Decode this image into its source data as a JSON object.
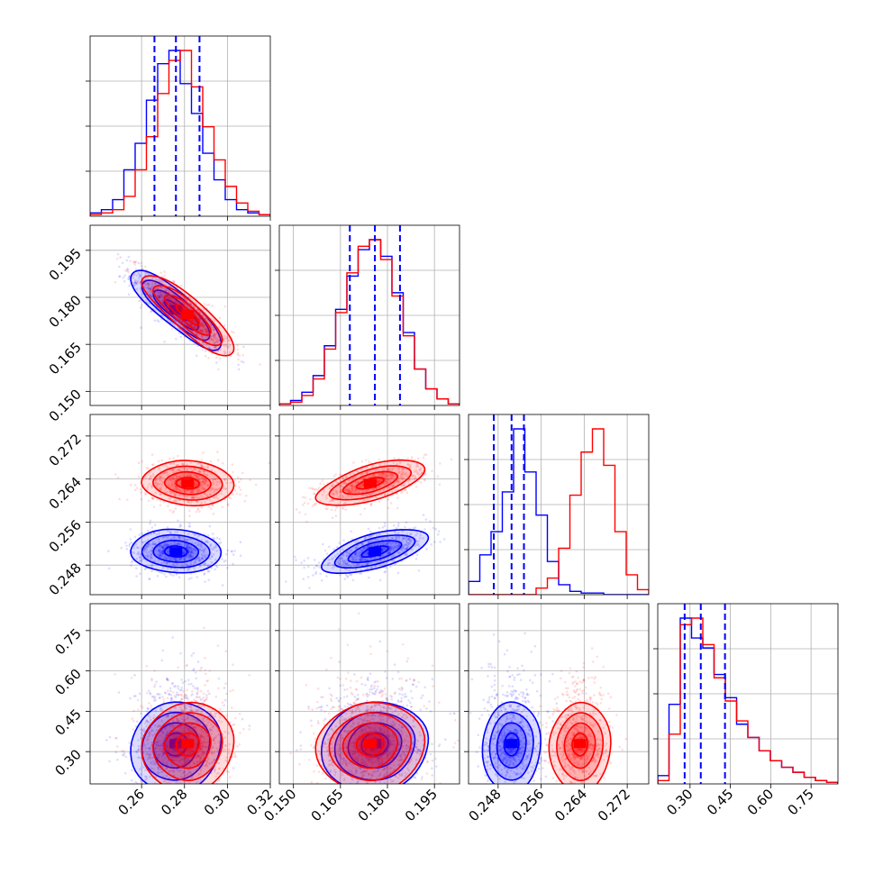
{
  "colors": {
    "series_a": "#0000ff",
    "series_b": "#ff0000",
    "grid": "#b0b0b0"
  },
  "chart_data": {
    "type": "corner",
    "grid": true,
    "legend": "none",
    "parameters": [
      {
        "range": [
          0.236,
          0.32
        ],
        "ticks": [
          0.26,
          0.28,
          0.3,
          0.32
        ],
        "tick_labels": [
          "0.26",
          "0.28",
          "0.30",
          "0.32"
        ]
      },
      {
        "range": [
          0.1455,
          0.203
        ],
        "ticks": [
          0.15,
          0.165,
          0.18,
          0.195
        ],
        "tick_labels": [
          "0.150",
          "0.165",
          "0.180",
          "0.195"
        ]
      },
      {
        "range": [
          0.2425,
          0.276
        ],
        "ticks": [
          0.248,
          0.256,
          0.264,
          0.272
        ],
        "tick_labels": [
          "0.248",
          "0.256",
          "0.264",
          "0.272"
        ]
      },
      {
        "range": [
          0.18,
          0.85
        ],
        "ticks": [
          0.3,
          0.45,
          0.6,
          0.75
        ],
        "tick_labels": [
          "0.30",
          "0.45",
          "0.60",
          "0.75"
        ]
      }
    ],
    "series": [
      {
        "color": "#0000ff",
        "means": [
          0.276,
          0.176,
          0.2505,
          0.33
        ],
        "sds": [
          0.0105,
          0.0085,
          0.0027,
          0.1
        ],
        "quantiles": [
          [
            0.266,
            0.276,
            0.287
          ],
          [
            0.168,
            0.176,
            0.184
          ],
          [
            0.2472,
            0.2505,
            0.2528
          ],
          [
            0.28,
            0.34,
            0.43
          ]
        ],
        "hist": [
          [
            2,
            4,
            10,
            28,
            44,
            70,
            92,
            100,
            80,
            62,
            38,
            22,
            10,
            4,
            2,
            1
          ],
          [
            1,
            3,
            8,
            18,
            36,
            58,
            78,
            94,
            100,
            90,
            68,
            44,
            22,
            10,
            4,
            1
          ],
          [
            8,
            24,
            38,
            62,
            100,
            74,
            48,
            20,
            6,
            2,
            1,
            1,
            0,
            0,
            0,
            0
          ],
          [
            5,
            48,
            100,
            88,
            82,
            66,
            52,
            36,
            28,
            20,
            14,
            10,
            7,
            4,
            2,
            1
          ]
        ]
      },
      {
        "color": "#ff0000",
        "means": [
          0.2815,
          0.1745,
          0.2632,
          0.33
        ],
        "sds": [
          0.0105,
          0.0085,
          0.0028,
          0.1
        ],
        "hist": [
          [
            1,
            2,
            4,
            12,
            28,
            48,
            74,
            94,
            100,
            78,
            54,
            34,
            18,
            8,
            3,
            1
          ],
          [
            1,
            2,
            6,
            16,
            34,
            56,
            80,
            96,
            100,
            88,
            66,
            42,
            22,
            10,
            4,
            1
          ],
          [
            0,
            0,
            0,
            0,
            0,
            0,
            4,
            10,
            28,
            60,
            86,
            100,
            78,
            38,
            12,
            3
          ],
          [
            2,
            30,
            96,
            100,
            84,
            64,
            50,
            38,
            28,
            20,
            14,
            10,
            7,
            4,
            2,
            1
          ]
        ]
      }
    ],
    "correlations": {
      "1-0": -0.85,
      "2-0": -0.1,
      "2-1": 0.6,
      "3-0": 0.05,
      "3-1": 0.05,
      "3-2": 0.02
    }
  }
}
